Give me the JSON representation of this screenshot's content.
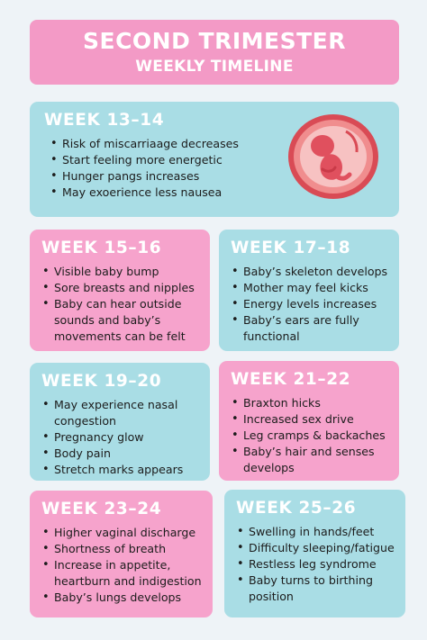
{
  "header": {
    "title": "SECOND TRIMESTER",
    "subtitle": "WEEKLY TIMELINE"
  },
  "cards": [
    {
      "heading": "WEEK 13–14",
      "color": "#a9dde5",
      "items": [
        "Risk of miscarriaage decreases",
        "Start feeling more energetic",
        "Hunger pangs increases",
        "May exoerience less nausea"
      ]
    },
    {
      "heading": "WEEK 15–16",
      "color": "#f6a3cc",
      "items": [
        "Visible baby bump",
        "Sore breasts and nipples",
        "Baby can hear outside sounds and baby’s movements can be felt"
      ]
    },
    {
      "heading": "WEEK 17–18",
      "color": "#a9dde5",
      "items": [
        "Baby’s skeleton develops",
        "Mother may feel kicks",
        "Energy levels increases",
        "Baby’s ears are fully functional"
      ]
    },
    {
      "heading": "WEEK 19–20",
      "color": "#a9dde5",
      "items": [
        "May experience nasal congestion",
        "Pregnancy glow",
        "Body pain",
        "Stretch marks appears"
      ]
    },
    {
      "heading": "WEEK 21–22",
      "color": "#f6a3cc",
      "items": [
        "Braxton hicks",
        "Increased sex drive",
        "Leg cramps & backaches",
        "Baby’s hair and senses develops"
      ]
    },
    {
      "heading": "WEEK 23–24",
      "color": "#f6a3cc",
      "items": [
        "Higher vaginal discharge",
        "Shortness of breath",
        "Increase in appetite, heartburn and indigestion",
        "Baby’s lungs develops"
      ]
    },
    {
      "heading": "WEEK 25–26",
      "color": "#a9dde5",
      "items": [
        "Swelling in hands/feet",
        "Difficulty sleeping/fatigue",
        "Restless leg syndrome",
        "Baby turns to birthing position"
      ]
    }
  ],
  "illustration": {
    "icon": "fetus-in-womb-icon"
  }
}
